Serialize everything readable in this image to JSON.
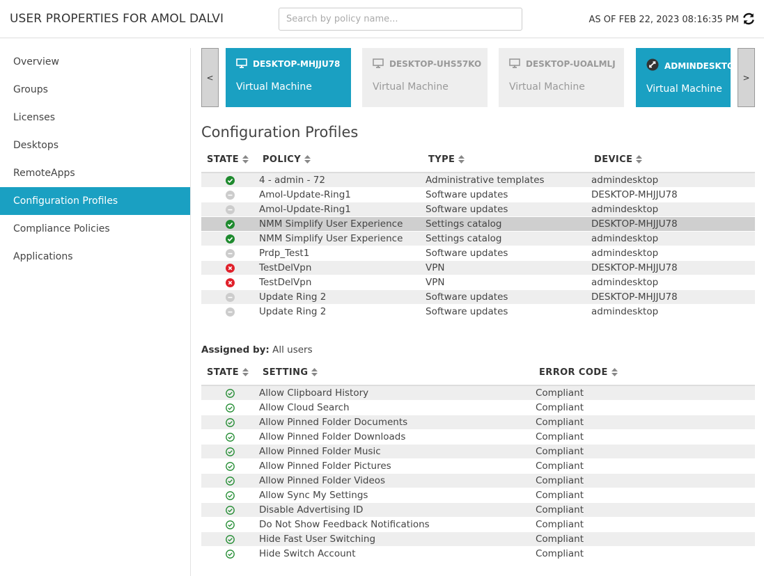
{
  "header": {
    "title": "USER PROPERTIES FOR AMOL DALVI",
    "search_placeholder": "Search by policy name...",
    "as_of": "AS OF FEB 22, 2023 08:16:35 PM"
  },
  "sidebar": {
    "items": [
      {
        "label": "Overview"
      },
      {
        "label": "Groups"
      },
      {
        "label": "Licenses"
      },
      {
        "label": "Desktops"
      },
      {
        "label": "RemoteApps"
      },
      {
        "label": "Configuration Profiles",
        "active": true
      },
      {
        "label": "Compliance Policies"
      },
      {
        "label": "Applications"
      }
    ]
  },
  "carousel": {
    "prev_label": "<",
    "next_label": ">",
    "devices": [
      {
        "name": "DESKTOP-MHJJU78",
        "type": "Virtual Machine",
        "icon": "monitor-icon",
        "active": true
      },
      {
        "name": "DESKTOP-UHS57KO",
        "type": "Virtual Machine",
        "icon": "monitor-icon",
        "active": false
      },
      {
        "name": "DESKTOP-UOALMLJ",
        "type": "Virtual Machine",
        "icon": "monitor-icon",
        "active": false
      },
      {
        "name": "ADMINDESKTOP",
        "type": "Virtual Machine",
        "icon": "remote-desktop-icon",
        "active": true
      }
    ]
  },
  "profiles": {
    "title": "Configuration Profiles",
    "columns": {
      "state": "STATE",
      "policy": "POLICY",
      "type": "TYPE",
      "device": "DEVICE"
    },
    "rows": [
      {
        "state": "success",
        "policy": "4 - admin - 72",
        "type": "Administrative templates",
        "device": "admindesktop"
      },
      {
        "state": "neutral",
        "policy": "Amol-Update-Ring1",
        "type": "Software updates",
        "device": "DESKTOP-MHJJU78"
      },
      {
        "state": "neutral",
        "policy": "Amol-Update-Ring1",
        "type": "Software updates",
        "device": "admindesktop"
      },
      {
        "state": "success",
        "policy": "NMM Simplify User Experience",
        "type": "Settings catalog",
        "device": "DESKTOP-MHJJU78",
        "selected": true
      },
      {
        "state": "success",
        "policy": "NMM Simplify User Experience",
        "type": "Settings catalog",
        "device": "admindesktop"
      },
      {
        "state": "neutral",
        "policy": "Prdp_Test1",
        "type": "Software updates",
        "device": "admindesktop"
      },
      {
        "state": "error",
        "policy": "TestDelVpn",
        "type": "VPN",
        "device": "DESKTOP-MHJJU78"
      },
      {
        "state": "error",
        "policy": "TestDelVpn",
        "type": "VPN",
        "device": "admindesktop"
      },
      {
        "state": "neutral",
        "policy": "Update Ring 2",
        "type": "Software updates",
        "device": "DESKTOP-MHJJU78"
      },
      {
        "state": "neutral",
        "policy": "Update Ring 2",
        "type": "Software updates",
        "device": "admindesktop"
      }
    ]
  },
  "assigned": {
    "label": "Assigned by:",
    "value": "All users"
  },
  "settings": {
    "columns": {
      "state": "STATE",
      "setting": "SETTING",
      "error_code": "ERROR CODE"
    },
    "rows": [
      {
        "state": "compliant",
        "setting": "Allow Clipboard History",
        "error_code": "Compliant"
      },
      {
        "state": "compliant",
        "setting": "Allow Cloud Search",
        "error_code": "Compliant"
      },
      {
        "state": "compliant",
        "setting": "Allow Pinned Folder Documents",
        "error_code": "Compliant"
      },
      {
        "state": "compliant",
        "setting": "Allow Pinned Folder Downloads",
        "error_code": "Compliant"
      },
      {
        "state": "compliant",
        "setting": "Allow Pinned Folder Music",
        "error_code": "Compliant"
      },
      {
        "state": "compliant",
        "setting": "Allow Pinned Folder Pictures",
        "error_code": "Compliant"
      },
      {
        "state": "compliant",
        "setting": "Allow Pinned Folder Videos",
        "error_code": "Compliant"
      },
      {
        "state": "compliant",
        "setting": "Allow Sync My Settings",
        "error_code": "Compliant"
      },
      {
        "state": "compliant",
        "setting": "Disable Advertising ID",
        "error_code": "Compliant"
      },
      {
        "state": "compliant",
        "setting": "Do Not Show Feedback Notifications",
        "error_code": "Compliant"
      },
      {
        "state": "compliant",
        "setting": "Hide Fast User Switching",
        "error_code": "Compliant"
      },
      {
        "state": "compliant",
        "setting": "Hide Switch Account",
        "error_code": "Compliant"
      }
    ]
  },
  "colors": {
    "accent": "#1aa0c2",
    "success": "#1e8a2e",
    "error": "#e0202a",
    "neutral": "#cccccc"
  }
}
